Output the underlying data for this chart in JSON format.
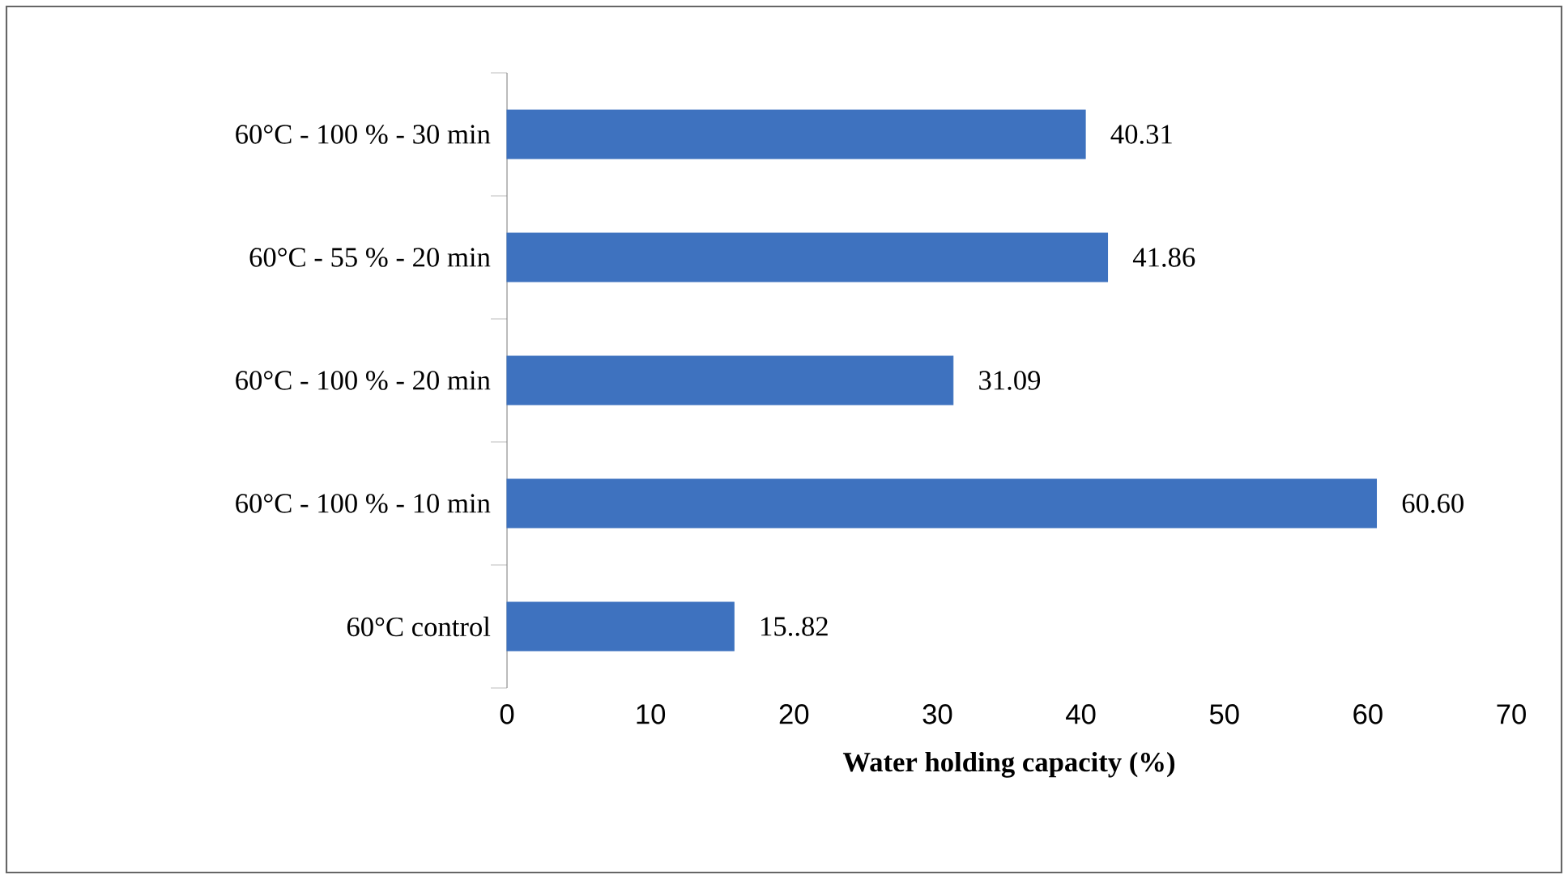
{
  "chart_data": {
    "type": "bar",
    "orientation": "horizontal",
    "xlabel": "Water holding capacity (%)",
    "categories": [
      "60°C - 100 % - 30 min",
      "60°C - 55 % - 20 min",
      "60°C - 100 % - 20 min",
      "60°C - 100 % - 10 min",
      "60°C control"
    ],
    "values": [
      40.31,
      41.86,
      31.09,
      60.6,
      15.82
    ],
    "value_labels": [
      "40.31",
      "41.86",
      "31.09",
      "60.60",
      "15..82"
    ],
    "color": "#3e72bf",
    "xlim": [
      0,
      70
    ],
    "xticks": [
      0,
      10,
      20,
      30,
      40,
      50,
      60,
      70
    ]
  }
}
